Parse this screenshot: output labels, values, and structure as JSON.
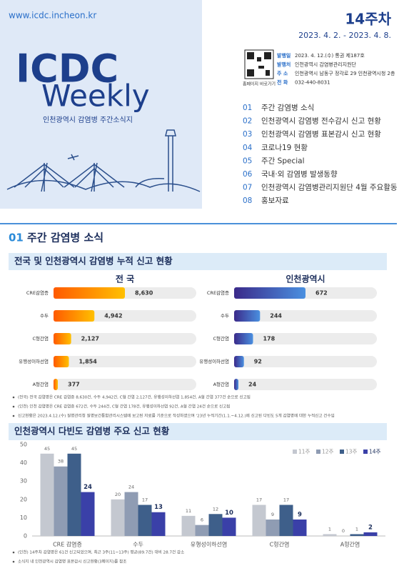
{
  "header": {
    "url": "www.icdc.incheon.kr",
    "logo": "ICDC",
    "logo_sub": "Weekly",
    "subtitle": "인천광역시 감염병 주간소식지",
    "week": "14주차",
    "period": "2023. 4. 2. - 2023. 4. 8.",
    "qr_caption": "홈페이지 바로가기",
    "info": [
      [
        "발행일",
        "2023. 4. 12.(수) 통권 제187호"
      ],
      [
        "발행처",
        "인천광역시 감염병관리지원단"
      ],
      [
        "주 소",
        "인천광역시 남동구 정각로 29 인천광역시청 2층"
      ],
      [
        "전 화",
        "032-440-8031"
      ]
    ]
  },
  "toc": [
    [
      "01",
      "주간 감염병 소식"
    ],
    [
      "02",
      "인천광역시 감염병 전수감시 신고 현황"
    ],
    [
      "03",
      "인천광역시 감염병 표본감시 신고 현황"
    ],
    [
      "04",
      "코로나19 현황"
    ],
    [
      "05",
      "주간 Special"
    ],
    [
      "06",
      "국내·외 감염병 발생동향"
    ],
    [
      "07",
      "인천광역시 감염병관리지원단 4월 주요활동"
    ],
    [
      "08",
      "홍보자료"
    ]
  ],
  "section": {
    "number": "01",
    "title": "주간 감염병 소식",
    "sub1": "전국 및 인천광역시 감염병 누적 신고 현황",
    "sub2": "인천광역시 다빈도 감염병 주요 신고 현황"
  },
  "notes1": [
    "(전국) 전국 감염병은 CRE 감염증 8,630건, 수두 4,942건, C형 간염 2,127건, 유행성이하선염 1,854건, A형 간염 377건 순으로 신고됨",
    "(인천) 인천 감염병은 CRE 감염증 672건, 수두 244건, C형 간염 178건, 유행성이하선염 92건, A형 간염 24건 순으로 신고됨",
    "신고현황은 2023.4.12.(수) 질병관리청 질병보건통합관리시스템에 보고된 자료를 기준으로 작성하였으며 '23년 누적기간(1.1.~4.12.)에 신고된 다빈도 5개 감염병에 대한 누적신고 건수임"
  ],
  "notes2": [
    "(인천) 14주차 감염병은 61건 신고되었으며, 최근 3주(11~13주) 평균(89.7건) 대비 28.7건 감소",
    "소식지 내 인천광역시 감염병 표본감시 신고현황(3페이지)를 참조"
  ],
  "chart_data": [
    {
      "type": "hbar",
      "title": "전 국",
      "categories": [
        "CRE감염증",
        "수두",
        "C형간염",
        "유행성이하선염",
        "A형간염"
      ],
      "values": [
        8630,
        4942,
        2127,
        1854,
        377
      ],
      "value_labels": [
        "8,630",
        "4,942",
        "2,127",
        "1,854",
        "377"
      ],
      "color": "#ff6a00"
    },
    {
      "type": "hbar",
      "title": "인천광역시",
      "categories": [
        "CRE감염증",
        "수두",
        "C형간염",
        "유행성이하선염",
        "A형간염"
      ],
      "values": [
        672,
        244,
        178,
        92,
        24
      ],
      "color": "#3b2a8a"
    },
    {
      "type": "bar",
      "categories": [
        "CRE 감염증",
        "수두",
        "유행성이하선염",
        "C형간염",
        "A형간염"
      ],
      "series": [
        {
          "name": "11주",
          "color": "#c4c8d0",
          "values": [
            45,
            20,
            11,
            17,
            1
          ]
        },
        {
          "name": "12주",
          "color": "#8f9cb3",
          "values": [
            38,
            24,
            6,
            9,
            0
          ]
        },
        {
          "name": "13주",
          "color": "#3e5f8a",
          "values": [
            45,
            17,
            12,
            17,
            1
          ]
        },
        {
          "name": "14주",
          "color": "#3a40a8",
          "values": [
            24,
            13,
            10,
            9,
            2
          ]
        }
      ],
      "ylim": [
        0,
        50
      ],
      "yticks": [
        0,
        10,
        20,
        30,
        40,
        50
      ],
      "grid": false,
      "legend": "top-right"
    }
  ]
}
